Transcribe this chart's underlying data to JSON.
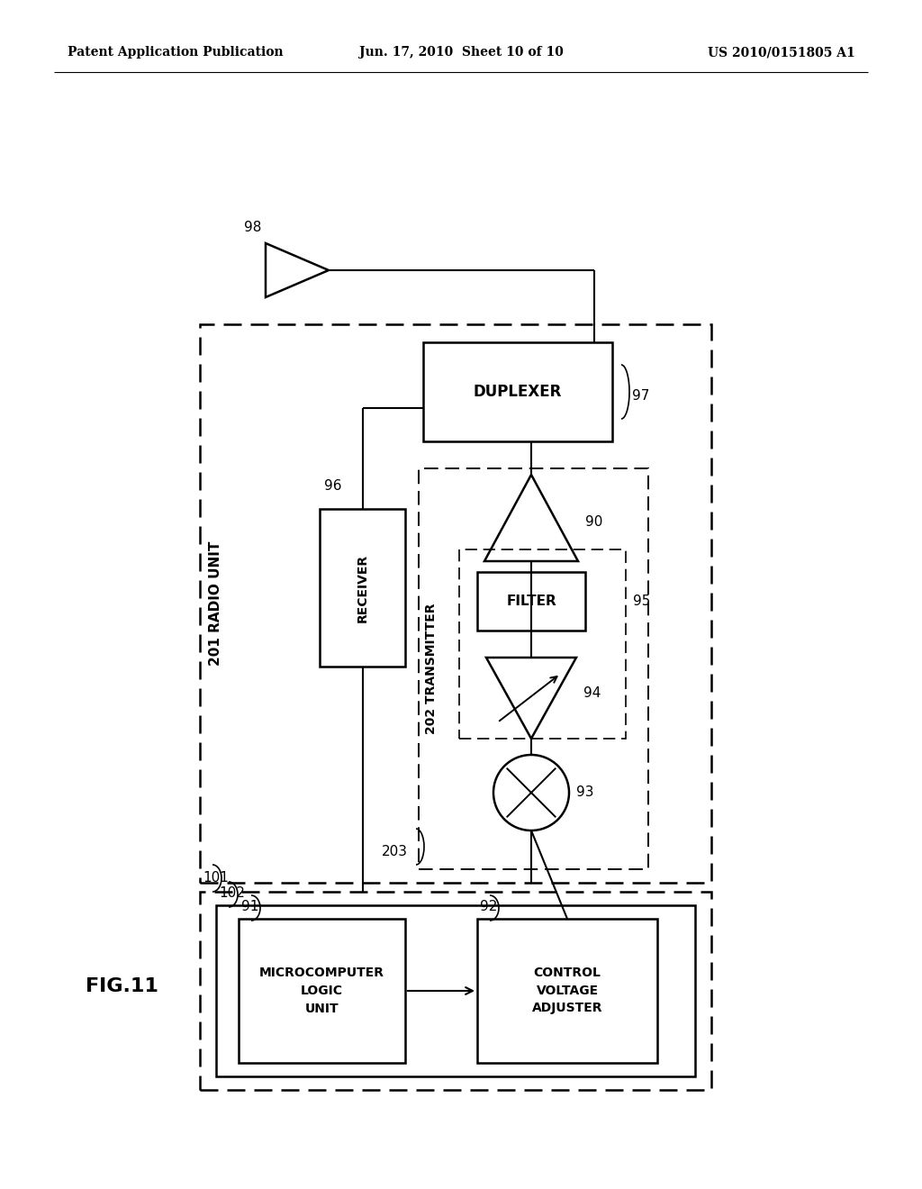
{
  "bg_color": "#ffffff",
  "header_left": "Patent Application Publication",
  "header_mid": "Jun. 17, 2010  Sheet 10 of 10",
  "header_right": "US 2010/0151805 A1",
  "fig_label": "FIG.11"
}
